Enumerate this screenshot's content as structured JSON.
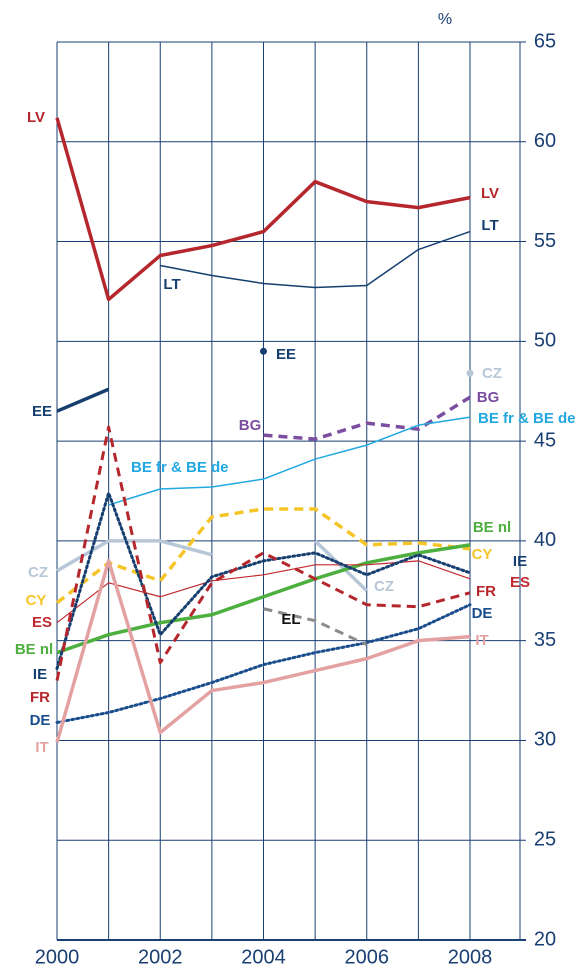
{
  "chart_data": {
    "type": "line",
    "unit": "%",
    "x": [
      2000,
      2001,
      2002,
      2003,
      2004,
      2005,
      2006,
      2007,
      2008
    ],
    "xlim": [
      2000,
      2008
    ],
    "xticks": [
      2000,
      2002,
      2004,
      2006,
      2008
    ],
    "xgrid": [
      2000,
      2001,
      2002,
      2003,
      2004,
      2005,
      2006,
      2007,
      2008
    ],
    "ylim": [
      20,
      65
    ],
    "yticks": [
      20,
      25,
      30,
      35,
      40,
      45,
      50,
      55,
      60,
      65
    ],
    "grid": true,
    "series": [
      {
        "name": "LV",
        "color": "#b5272d",
        "width": 3.5,
        "dash": "solid",
        "values": [
          61.2,
          52.1,
          54.3,
          54.8,
          55.5,
          58.0,
          57.0,
          56.7,
          57.2
        ]
      },
      {
        "name": "LT",
        "color": "#163f70",
        "width": 1.5,
        "dash": "solid",
        "values": [
          null,
          null,
          53.8,
          53.3,
          52.9,
          52.7,
          52.8,
          54.6,
          55.5
        ]
      },
      {
        "name": "EE",
        "color": "#163f70",
        "width": 3.5,
        "dash": "solid",
        "values": [
          46.5,
          47.6,
          null,
          null,
          49.5,
          null,
          null,
          null,
          null
        ]
      },
      {
        "name": "CZ",
        "color": "#b7c7d8",
        "width": 3.5,
        "dash": "solid",
        "values": [
          38.5,
          40.0,
          40.0,
          39.3,
          null,
          40.0,
          37.5,
          null,
          48.4
        ]
      },
      {
        "name": "BG",
        "color": "#7b4ea0",
        "width": 3.5,
        "dash": "dashed",
        "values": [
          null,
          null,
          null,
          null,
          45.3,
          45.1,
          45.9,
          45.6,
          47.2
        ]
      },
      {
        "name": "BE fr & BE de",
        "color": "#22a8e0",
        "width": 1.5,
        "dash": "solid",
        "values": [
          null,
          41.8,
          42.6,
          42.7,
          43.1,
          44.1,
          44.8,
          45.8,
          46.2
        ]
      },
      {
        "name": "CY",
        "color": "#f5c528",
        "width": 3.5,
        "dash": "dashed",
        "values": [
          36.9,
          38.9,
          38.0,
          41.2,
          41.6,
          41.6,
          39.8,
          39.9,
          39.6
        ]
      },
      {
        "name": "BE nl",
        "color": "#4caf3e",
        "width": 3.5,
        "dash": "solid",
        "values": [
          34.4,
          35.3,
          35.9,
          36.3,
          37.2,
          38.1,
          38.9,
          39.4,
          39.8
        ]
      },
      {
        "name": "ES",
        "color": "#c22a2f",
        "width": 1.2,
        "dash": "solid",
        "values": [
          35.9,
          37.9,
          37.2,
          38.0,
          38.3,
          38.8,
          38.8,
          39.0,
          38.1
        ]
      },
      {
        "name": "IE",
        "color": "#163f70",
        "width": 3,
        "dash": "dotted",
        "values": [
          33.6,
          42.4,
          35.3,
          38.2,
          39.0,
          39.4,
          38.3,
          39.3,
          38.4
        ]
      },
      {
        "name": "FR",
        "color": "#b5272d",
        "width": 3,
        "dash": "dashed",
        "values": [
          33.0,
          45.7,
          33.9,
          37.9,
          39.4,
          38.1,
          36.8,
          36.7,
          37.4
        ]
      },
      {
        "name": "DE",
        "color": "#1a4d8c",
        "width": 3,
        "dash": "dotted",
        "values": [
          30.9,
          31.4,
          32.1,
          32.9,
          33.8,
          34.4,
          34.9,
          35.6,
          36.8
        ]
      },
      {
        "name": "IT",
        "color": "#e4a1a1",
        "width": 3.5,
        "dash": "solid",
        "values": [
          29.9,
          39.0,
          30.4,
          32.5,
          32.9,
          33.5,
          34.1,
          35.0,
          35.2
        ]
      },
      {
        "name": "EL",
        "color": "#8c8c8c",
        "width": 3,
        "dash": "dashed",
        "values": [
          null,
          null,
          null,
          null,
          36.6,
          36.0,
          34.8,
          null,
          null
        ]
      }
    ]
  }
}
